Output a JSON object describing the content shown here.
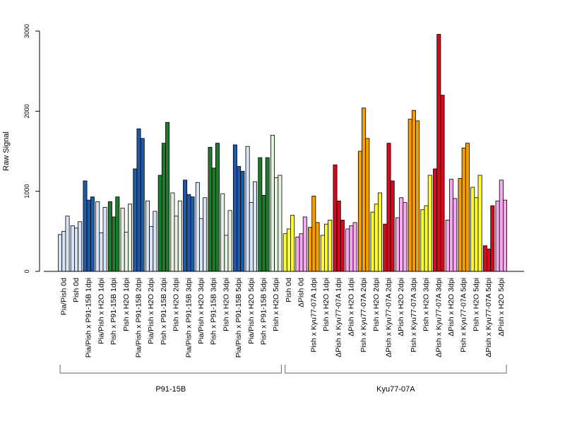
{
  "chart_data": {
    "type": "bar",
    "ylabel": "Raw Signal",
    "ylim": [
      0,
      3000
    ],
    "yticks": [
      0,
      1000,
      2000,
      3000
    ],
    "colors": {
      "light_blue": "#d6e4f5",
      "dark_blue": "#1f5aa6",
      "dark_green": "#1f7a2c",
      "light_green": "#e6f2e0",
      "yellow": "#ffff33",
      "pink": "#f7a8f0",
      "orange": "#f5a000",
      "red": "#d40a1e"
    },
    "groups": [
      {
        "name": "P91-15B",
        "categories": [
          {
            "label": "Pia/Pish 0d",
            "color": "light_blue",
            "values": [
              460,
              500,
              690
            ]
          },
          {
            "label": "Pish 0d",
            "color": "light_blue",
            "values": [
              570,
              540,
              620
            ]
          },
          {
            "label": "Pia/Pish x P91-15B 1dpi",
            "color": "dark_blue",
            "values": [
              1130,
              890,
              930
            ]
          },
          {
            "label": "Pia/Pish x H2O 1dpi",
            "color": "light_blue",
            "values": [
              870,
              480,
              800
            ]
          },
          {
            "label": "Pish x P91-15B 1dpi",
            "color": "dark_green",
            "values": [
              870,
              680,
              930
            ]
          },
          {
            "label": "Pish x H2O 1dpi",
            "color": "light_green",
            "values": [
              790,
              490,
              840
            ]
          },
          {
            "label": "Pia/Pish x P91-15B 2dpi",
            "color": "dark_blue",
            "values": [
              1280,
              1780,
              1660
            ]
          },
          {
            "label": "Pia/Pish x H2O 2dpi",
            "color": "light_blue",
            "values": [
              880,
              560,
              750
            ]
          },
          {
            "label": "Pish x P91-15B 2dpi",
            "color": "dark_green",
            "values": [
              1200,
              1600,
              1860
            ]
          },
          {
            "label": "Pish x H2O 2dpi",
            "color": "light_green",
            "values": [
              980,
              690,
              880
            ]
          },
          {
            "label": "Pia/Pish x P91-15B 3dpi",
            "color": "dark_blue",
            "values": [
              1140,
              960,
              930
            ]
          },
          {
            "label": "Pia/Pish x H2O 3dpi",
            "color": "light_blue",
            "values": [
              1110,
              660,
              920
            ]
          },
          {
            "label": "Pish x P91-15B 3dpi",
            "color": "dark_green",
            "values": [
              1550,
              1290,
              1600
            ]
          },
          {
            "label": "Pish x H2O 3dpi",
            "color": "light_green",
            "values": [
              970,
              450,
              760
            ]
          },
          {
            "label": "Pia/Pish x P91-15B 5dpi",
            "color": "dark_blue",
            "values": [
              1580,
              1310,
              1250
            ]
          },
          {
            "label": "Pia/Pish x H2O 5dpi",
            "color": "light_blue",
            "values": [
              1560,
              860,
              1120
            ]
          },
          {
            "label": "Pish x P91-15B 5dpi",
            "color": "dark_green",
            "values": [
              1420,
              950,
              1420
            ]
          },
          {
            "label": "Pish x H2O 5dpi",
            "color": "light_green",
            "values": [
              1700,
              1170,
              1200
            ]
          }
        ]
      },
      {
        "name": "Kyu77-07A",
        "categories": [
          {
            "label": "Pish 0d",
            "color": "yellow",
            "values": [
              470,
              530,
              700
            ]
          },
          {
            "label": "ΔPish 0d",
            "color": "pink",
            "values": [
              430,
              470,
              680
            ]
          },
          {
            "label": "Pish x Kyu77-07A 1dpi",
            "color": "orange",
            "values": [
              550,
              940,
              610
            ]
          },
          {
            "label": "Pish x H2O 1dpi",
            "color": "yellow",
            "values": [
              450,
              590,
              640
            ]
          },
          {
            "label": "ΔPish x Kyu77-07A 1dpi",
            "color": "red",
            "values": [
              1330,
              880,
              640
            ]
          },
          {
            "label": "ΔPish x H2O 1dpi",
            "color": "pink",
            "values": [
              530,
              570,
              610
            ]
          },
          {
            "label": "Pish x Kyu77-07A 2dpi",
            "color": "orange",
            "values": [
              1500,
              2040,
              1660
            ]
          },
          {
            "label": "Pish x H2O 2dpi",
            "color": "yellow",
            "values": [
              740,
              840,
              980
            ]
          },
          {
            "label": "ΔPish x Kyu77-07A 2dpi",
            "color": "red",
            "values": [
              590,
              1600,
              1130
            ]
          },
          {
            "label": "ΔPish x H2O 2dpi",
            "color": "pink",
            "values": [
              670,
              920,
              860
            ]
          },
          {
            "label": "Pish x Kyu77-07A 3dpi",
            "color": "orange",
            "values": [
              1900,
              2010,
              1880
            ]
          },
          {
            "label": "Pish x H2O 3dpi",
            "color": "yellow",
            "values": [
              770,
              820,
              1200
            ]
          },
          {
            "label": "ΔPish x Kyu77-07A 3dpi",
            "color": "red",
            "values": [
              1280,
              2960,
              2200
            ]
          },
          {
            "label": "ΔPish x H2O 3dpi",
            "color": "pink",
            "values": [
              640,
              1150,
              910
            ]
          },
          {
            "label": "Pish x Kyu77-07A 5dpi",
            "color": "orange",
            "values": [
              1160,
              1540,
              1600
            ]
          },
          {
            "label": "Pish x H2O 5dpi",
            "color": "yellow",
            "values": [
              1050,
              920,
              1200
            ]
          },
          {
            "label": "ΔPish x Kyu77-07A 5dpi",
            "color": "red",
            "values": [
              320,
              280,
              820
            ]
          },
          {
            "label": "ΔPish x H2O 5dpi",
            "color": "pink",
            "values": [
              880,
              1140,
              890
            ]
          }
        ]
      }
    ]
  }
}
